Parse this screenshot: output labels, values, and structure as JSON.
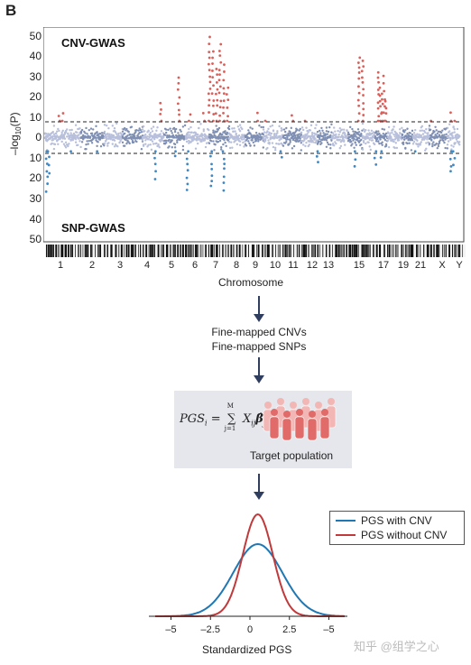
{
  "panel_label": "B",
  "gwas": {
    "top_label": "CNV-GWAS",
    "bottom_label": "SNP-GWAS",
    "ylabel_prefix": "–log",
    "ylabel_sub": "10",
    "ylabel_suffix": "(P)",
    "y_ticks_top": [
      "50",
      "40",
      "30",
      "20",
      "10",
      "0"
    ],
    "y_ticks_bottom": [
      "10",
      "20",
      "30",
      "40",
      "50"
    ],
    "chromosome_ticks": [
      "1",
      "2",
      "3",
      "4",
      "5",
      "6",
      "7",
      "8",
      "9",
      "10",
      "11",
      "12",
      "13",
      "15",
      "17",
      "19",
      "21",
      "X",
      "Y"
    ],
    "xlabel": "Chromosome",
    "colors": {
      "light": "#b7bfdb",
      "dark": "#7f8fb3",
      "significant_cnv": "#d9605a",
      "significant_snp": "#3f88c5"
    }
  },
  "flow": {
    "line1": "Fine-mapped CNVs",
    "line2": "Fine-mapped SNPs"
  },
  "pgs_box": {
    "formula_lhs": "PGS",
    "formula_lhs_sub": "i",
    "formula_eq": "=",
    "sum_top": "M",
    "sum_symbol": "∑",
    "sum_bottom": "j=1",
    "term_x": "X",
    "term_x_sub": "ij",
    "term_beta": "β̂",
    "term_beta_sub": "j",
    "population_label": "Target population",
    "population_color": "#e06b68"
  },
  "density": {
    "legend": [
      {
        "label": "PGS with CNV",
        "color": "#1f77b4"
      },
      {
        "label": "PGS without CNV",
        "color": "#c0393b"
      }
    ],
    "x_ticks": [
      "–5",
      "–2.5",
      "0",
      "2.5",
      "–5"
    ],
    "xlabel": "Standardized PGS"
  },
  "watermark": "知乎 @组学之心"
}
